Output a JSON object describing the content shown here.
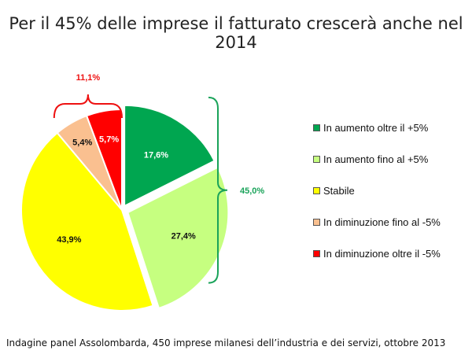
{
  "chart_data": {
    "type": "pie",
    "title": "Per il 45% delle imprese il fatturato crescerà anche nel 2014",
    "slices": [
      {
        "label": "In aumento oltre il +5%",
        "value": 17.6,
        "value_label": "17,6%",
        "color": "#00a650"
      },
      {
        "label": "In aumento fino al +5%",
        "value": 27.4,
        "value_label": "27,4%",
        "color": "#c6ff80"
      },
      {
        "label": "Stabile",
        "value": 43.9,
        "value_label": "43,9%",
        "color": "#ffff00"
      },
      {
        "label": "In diminuzione fino al -5%",
        "value": 5.4,
        "value_label": "5,4%",
        "color": "#fac090"
      },
      {
        "label": "In diminuzione oltre il -5%",
        "value": 5.7,
        "value_label": "5,7%",
        "color": "#ff0000"
      }
    ],
    "annotations": [
      {
        "text": "45,0%",
        "color": "#1aa35a",
        "covers": [
          "In aumento oltre il +5%",
          "In aumento fino al +5%"
        ]
      },
      {
        "text": "11,1%",
        "color": "#ee1111",
        "covers": [
          "In diminuzione fino al -5%",
          "In diminuzione oltre il -5%"
        ]
      }
    ],
    "legend_position": "right"
  },
  "footer": "Indagine panel Assolombarda, 450 imprese milanesi dell’industria e dei servizi, ottobre 2013"
}
